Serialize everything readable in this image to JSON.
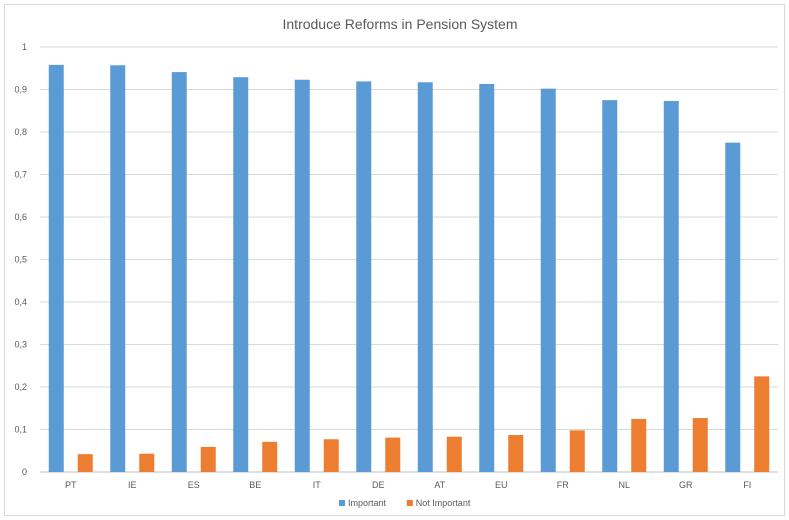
{
  "chart_data": {
    "type": "bar",
    "title": "Introduce Reforms in Pension System",
    "xlabel": "",
    "ylabel": "",
    "ylim": [
      0,
      1
    ],
    "yticks": [
      "0",
      "0,1",
      "0,2",
      "0,3",
      "0,4",
      "0,5",
      "0,6",
      "0,7",
      "0,8",
      "0,9",
      "1"
    ],
    "grid": true,
    "legend_position": "bottom",
    "categories": [
      "PT",
      "IE",
      "ES",
      "BE",
      "IT",
      "DE",
      "AT",
      "EU",
      "FR",
      "NL",
      "GR",
      "FI"
    ],
    "series": [
      {
        "name": "Important",
        "color": "#5b9bd5",
        "values": [
          0.958,
          0.957,
          0.941,
          0.929,
          0.923,
          0.919,
          0.917,
          0.913,
          0.902,
          0.875,
          0.873,
          0.775
        ]
      },
      {
        "name": "Not Important",
        "color": "#ed7d31",
        "values": [
          0.042,
          0.043,
          0.059,
          0.071,
          0.077,
          0.081,
          0.083,
          0.087,
          0.098,
          0.125,
          0.127,
          0.225
        ]
      }
    ]
  }
}
